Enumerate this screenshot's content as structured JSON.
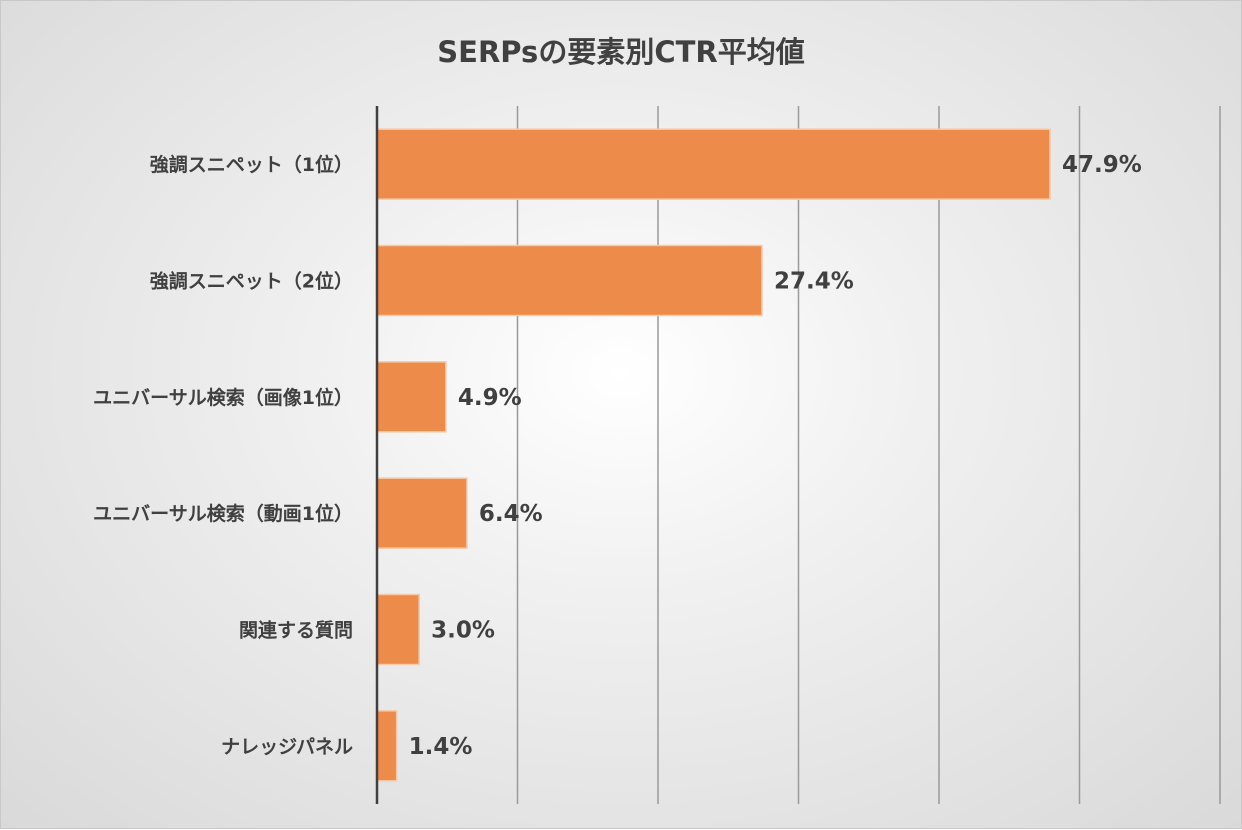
{
  "chart_data": {
    "type": "bar",
    "orientation": "horizontal",
    "title": "SERPsの要素別CTR平均値",
    "categories": [
      "強調スニペット（1位）",
      "強調スニペット（2位）",
      "ユニバーサル検索（画像1位）",
      "ユニバーサル検索（動画1位）",
      "関連する質問",
      "ナレッジパネル"
    ],
    "values": [
      47.9,
      27.4,
      4.9,
      6.4,
      3.0,
      1.4
    ],
    "data_labels": [
      "47.9%",
      "27.4%",
      "4.9%",
      "6.4%",
      "3.0%",
      "1.4%"
    ],
    "xlabel": "",
    "ylabel": "",
    "xlim": [
      0,
      60
    ],
    "x_gridlines_every": 10,
    "x_tick_labels_shown": false,
    "grid": true,
    "legend": "none",
    "bar_color": "#ED8B4A"
  }
}
